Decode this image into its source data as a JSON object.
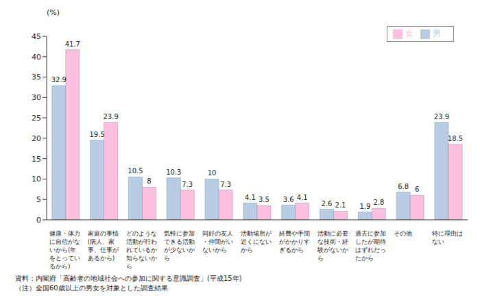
{
  "chart_data": {
    "type": "bar",
    "y_label": "(%)",
    "categories": [
      "健康・体力に自信がないから(年をとっているから)",
      "家庭の事情(病人、家事、仕事があるから)",
      "どのような活動が行われているか知らないから",
      "気軽に参加できる活動が少ないから",
      "同好の友人・仲間がいないから",
      "活動場所が近くにないから",
      "経費や手間がかかりすぎるから",
      "活動に必要な技術・経験がないから",
      "過去に参加したが期待はずれだったから",
      "その他",
      "特に理由はない"
    ],
    "series": [
      {
        "name": "男",
        "color": "#b8cce4",
        "values": [
          32.9,
          19.5,
          10.5,
          10.3,
          10.0,
          4.1,
          3.6,
          2.6,
          1.9,
          6.8,
          23.9
        ]
      },
      {
        "name": "女",
        "color": "#ffbfdf",
        "values": [
          41.7,
          23.9,
          8.0,
          7.3,
          7.3,
          3.5,
          4.1,
          2.1,
          2.8,
          6.0,
          18.5
        ]
      }
    ],
    "ylim": [
      0,
      45
    ],
    "yticks": [
      0,
      5,
      10,
      15,
      20,
      25,
      30,
      35,
      40,
      45
    ],
    "grid": false,
    "legend": "upper right",
    "data_labels": true,
    "source": "資料：内閣府「高齢者の地域社会への参加に関する意識調査」(平成15年)",
    "note": "（注）全国60歳以上の男女を対象とした調査結果"
  }
}
